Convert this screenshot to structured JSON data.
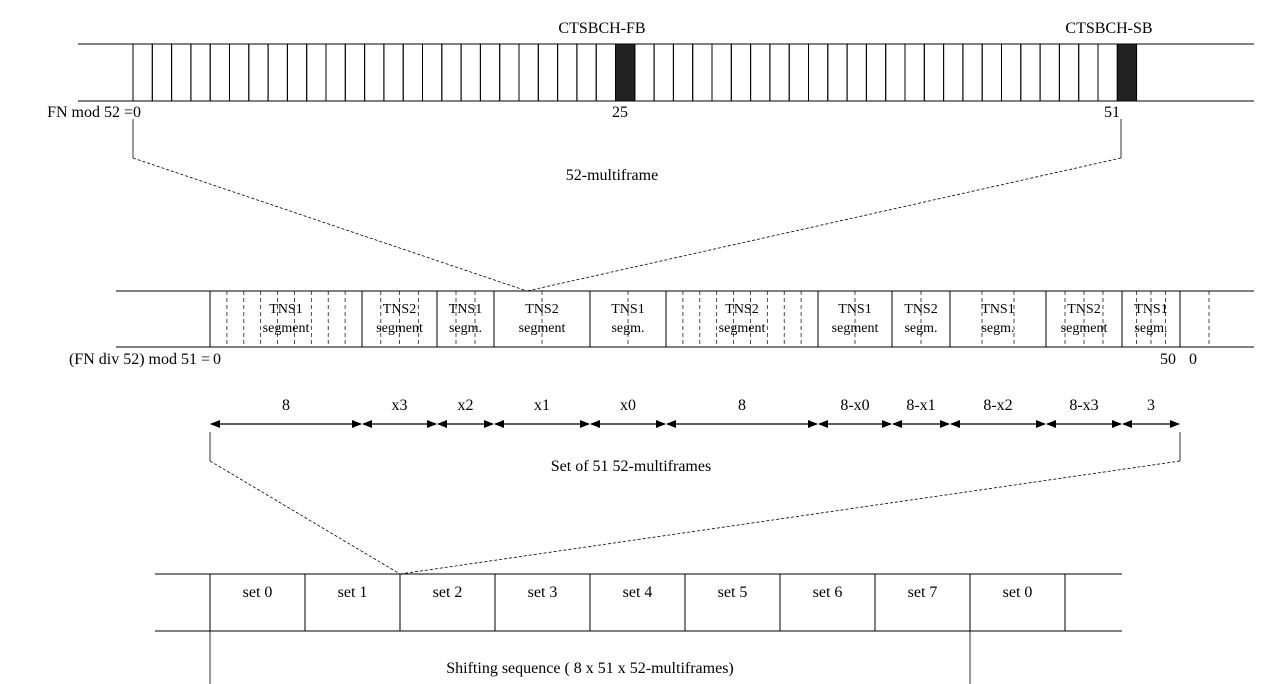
{
  "multiframe": {
    "labels": {
      "fb": "CTSBCH-FB",
      "sb": "CTSBCH-SB"
    },
    "fn_label": "FN mod 52 = ",
    "fn_ticks": [
      "0",
      "25",
      "51"
    ],
    "caption": "52-multiframe",
    "slot_count": 52,
    "highlight_slots": [
      25,
      51
    ]
  },
  "set_of_51": {
    "fn_label": "(FN div 52) mod 51 = ",
    "start_tick": "0",
    "end_ticks": [
      "50",
      "0"
    ],
    "segments": [
      {
        "line1": "TNS1",
        "line2": "segment"
      },
      {
        "line1": "TNS2",
        "line2": "segment"
      },
      {
        "line1": "TNS1",
        "line2": "segm."
      },
      {
        "line1": "TNS2",
        "line2": "segment"
      },
      {
        "line1": "TNS1",
        "line2": "segm."
      },
      {
        "line1": "TNS2",
        "line2": "segment"
      },
      {
        "line1": "TNS1",
        "line2": "segment"
      },
      {
        "line1": "TNS2",
        "line2": "segm."
      },
      {
        "line1": "TNS1",
        "line2": "segm."
      },
      {
        "line1": "TNS2",
        "line2": "segment"
      },
      {
        "line1": "TNS1",
        "line2": "segm."
      }
    ],
    "lengths": [
      "8",
      "x3",
      "x2",
      "x1",
      "x0",
      "8",
      "8-x0",
      "8-x1",
      "8-x2",
      "8-x3",
      "3"
    ],
    "caption": "Set of 51 52-multiframes"
  },
  "shifting": {
    "sets": [
      "set 0",
      "set 1",
      "set 2",
      "set 3",
      "set 4",
      "set 5",
      "set 6",
      "set 7",
      "set 0"
    ],
    "caption": "Shifting sequence ( 8 x 51 x 52-multiframes)"
  }
}
